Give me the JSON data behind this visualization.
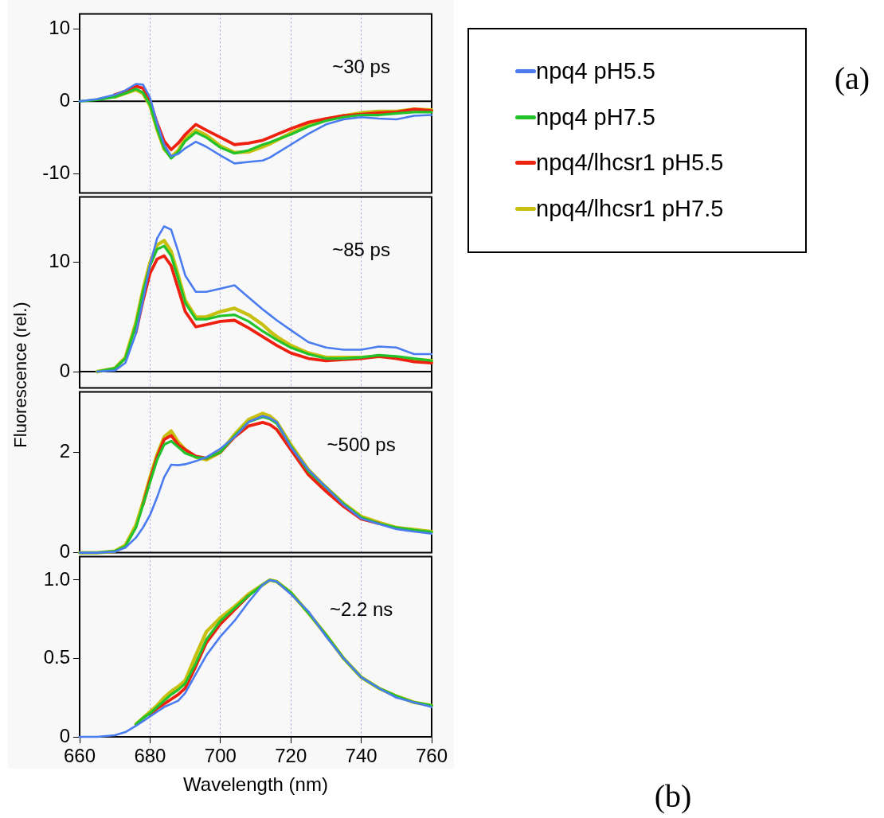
{
  "chart_data": [
    {
      "type": "line",
      "x": [
        660,
        665,
        670,
        673,
        676,
        678,
        680,
        682,
        684,
        686,
        688,
        690,
        693,
        696,
        700,
        704,
        708,
        712,
        714,
        716,
        720,
        725,
        730,
        735,
        740,
        745,
        750,
        755,
        760
      ],
      "series": [
        {
          "name": "npq4 pH5.5",
          "color": "#4a7cf0",
          "values": [
            0,
            0.3,
            0.9,
            1.5,
            2.4,
            2.3,
            0.5,
            -3.0,
            -6.0,
            -7.6,
            -7.3,
            -6.5,
            -5.6,
            -6.3,
            -7.5,
            -8.6,
            -8.4,
            -8.2,
            -7.8,
            -7.2,
            -6.0,
            -4.5,
            -3.2,
            -2.5,
            -2.2,
            -2.4,
            -2.5,
            -2.0,
            -1.9
          ]
        },
        {
          "name": "npq4 pH7.5",
          "color": "#22c32a",
          "values": [
            0,
            0.2,
            0.6,
            1.1,
            1.7,
            1.2,
            -0.5,
            -3.8,
            -6.5,
            -7.9,
            -7.0,
            -5.5,
            -4.3,
            -5.0,
            -6.4,
            -7.2,
            -6.8,
            -6.0,
            -5.7,
            -5.3,
            -4.6,
            -3.5,
            -2.7,
            -2.2,
            -1.9,
            -1.9,
            -1.7,
            -1.5,
            -1.5
          ]
        },
        {
          "name": "npq4/lhcsr1 pH5.5",
          "color": "#ee2010",
          "values": [
            null,
            null,
            0.9,
            1.4,
            2.1,
            1.8,
            0.0,
            -3.0,
            -5.5,
            -6.7,
            -5.8,
            -4.6,
            -3.2,
            -4.0,
            -5.0,
            -6.0,
            -5.8,
            -5.4,
            -5.0,
            -4.6,
            -3.8,
            -2.9,
            -2.4,
            -2.0,
            -1.8,
            -1.6,
            -1.5,
            -1.1,
            -1.3
          ]
        },
        {
          "name": "npq4/lhcsr1 pH7.5",
          "color": "#c8c010",
          "values": [
            null,
            null,
            0.6,
            1.1,
            1.6,
            1.1,
            -0.6,
            -3.9,
            -6.6,
            -7.7,
            -6.8,
            -5.2,
            -4.0,
            -4.7,
            -6.2,
            -7.1,
            -7.0,
            -6.3,
            -5.9,
            -5.4,
            -4.4,
            -3.3,
            -2.5,
            -2.0,
            -1.6,
            -1.4,
            -1.4,
            -1.1,
            -1.2
          ]
        }
      ],
      "xlim": [
        660,
        760
      ],
      "xticks": [
        660,
        680,
        700,
        720,
        740,
        760
      ],
      "ylim": [
        -12.7,
        12.1
      ],
      "yticks": [
        -10,
        0,
        10
      ],
      "grid": "x",
      "tick_labels": "y",
      "legend": "right",
      "ref_lines": [
        {
          "axis": "y",
          "value": 0,
          "color": "#000000"
        }
      ],
      "annotations": [
        "~30 ps",
        "(a)"
      ]
    },
    {
      "type": "line",
      "x": [
        665,
        670,
        673,
        676,
        678,
        680,
        682,
        684,
        686,
        688,
        690,
        693,
        696,
        700,
        704,
        708,
        712,
        714,
        716,
        720,
        725,
        730,
        735,
        740,
        745,
        750,
        755,
        760
      ],
      "series": [
        {
          "color": "#4a7cf0",
          "values": [
            0,
            0.1,
            0.8,
            3.5,
            6.5,
            9.8,
            12.2,
            13.3,
            13.0,
            11.0,
            8.8,
            7.3,
            7.3,
            7.6,
            7.9,
            6.8,
            5.7,
            5.2,
            4.7,
            3.8,
            2.7,
            2.2,
            2.0,
            2.0,
            2.3,
            2.2,
            1.6,
            1.6
          ]
        },
        {
          "color": "#22c32a",
          "values": [
            0,
            0.3,
            1.2,
            4.3,
            7.3,
            9.7,
            11.2,
            11.5,
            10.6,
            8.5,
            6.3,
            4.8,
            4.8,
            5.1,
            5.2,
            4.6,
            3.7,
            3.3,
            2.9,
            2.2,
            1.6,
            1.2,
            1.2,
            1.3,
            1.5,
            1.4,
            1.2,
            1.0
          ]
        },
        {
          "color": "#ee2010",
          "values": [
            null,
            null,
            null,
            3.6,
            6.5,
            9.0,
            10.3,
            10.6,
            9.7,
            7.6,
            5.5,
            4.1,
            4.3,
            4.6,
            4.7,
            4.0,
            3.2,
            2.8,
            2.4,
            1.7,
            1.2,
            1.0,
            1.1,
            1.2,
            1.4,
            1.2,
            0.9,
            0.8
          ]
        },
        {
          "color": "#c8c010",
          "values": [
            0,
            0.3,
            1.3,
            4.5,
            7.5,
            10.0,
            11.6,
            12.0,
            11.0,
            8.8,
            6.5,
            5.0,
            5.0,
            5.5,
            5.8,
            5.2,
            4.3,
            3.7,
            3.2,
            2.4,
            1.7,
            1.3,
            1.3,
            1.3,
            1.4,
            1.3,
            1.1,
            1.0
          ]
        }
      ],
      "xlim": [
        660,
        760
      ],
      "xticks": [
        660,
        680,
        700,
        720,
        740,
        760
      ],
      "ylim": [
        -1.5,
        16
      ],
      "yticks": [
        0,
        10
      ],
      "grid": "x",
      "tick_labels": "y",
      "ylabel": "Fluorescence (rel.)",
      "ref_lines": [
        {
          "axis": "y",
          "value": 0,
          "color": "#000000"
        }
      ],
      "annotations": [
        "~85 ps"
      ]
    },
    {
      "type": "line",
      "x": [
        660,
        665,
        670,
        673,
        676,
        678,
        680,
        682,
        684,
        686,
        688,
        690,
        693,
        696,
        700,
        704,
        708,
        712,
        714,
        716,
        720,
        725,
        730,
        735,
        740,
        745,
        750,
        755,
        760
      ],
      "series": [
        {
          "color": "#4a7cf0",
          "values": [
            0,
            0,
            0.02,
            0.1,
            0.3,
            0.5,
            0.75,
            1.1,
            1.5,
            1.75,
            1.74,
            1.76,
            1.82,
            1.9,
            2.07,
            2.3,
            2.6,
            2.72,
            2.68,
            2.6,
            2.1,
            1.65,
            1.3,
            0.95,
            0.68,
            0.57,
            0.47,
            0.42,
            0.38
          ]
        },
        {
          "color": "#22c32a",
          "values": [
            0,
            0,
            0.03,
            0.13,
            0.5,
            0.95,
            1.4,
            1.85,
            2.15,
            2.22,
            2.1,
            1.98,
            1.9,
            1.88,
            2.0,
            2.32,
            2.6,
            2.7,
            2.66,
            2.57,
            2.12,
            1.62,
            1.3,
            0.97,
            0.7,
            0.58,
            0.5,
            0.45,
            0.41
          ]
        },
        {
          "color": "#ee2010",
          "values": [
            null,
            null,
            null,
            null,
            null,
            0.95,
            1.45,
            1.9,
            2.25,
            2.33,
            2.15,
            2.05,
            1.92,
            1.88,
            2.0,
            2.3,
            2.52,
            2.59,
            2.55,
            2.45,
            2.05,
            1.55,
            1.22,
            0.92,
            0.67,
            0.58,
            null,
            null,
            null
          ]
        },
        {
          "color": "#c8c010",
          "values": [
            0,
            0,
            0.03,
            0.15,
            0.55,
            1.0,
            1.5,
            1.95,
            2.3,
            2.42,
            2.2,
            2.05,
            1.9,
            1.85,
            2.0,
            2.35,
            2.65,
            2.77,
            2.72,
            2.6,
            2.15,
            1.65,
            1.3,
            0.98,
            0.72,
            0.6,
            0.5,
            0.46,
            0.42
          ]
        }
      ],
      "xlim": [
        660,
        760
      ],
      "xticks": [
        660,
        680,
        700,
        720,
        740,
        760
      ],
      "ylim": [
        0,
        3.2
      ],
      "yticks": [
        0,
        2
      ],
      "grid": "x",
      "tick_labels": "y",
      "annotations": [
        "~500 ps"
      ]
    },
    {
      "type": "line",
      "x": [
        660,
        665,
        670,
        673,
        676,
        678,
        680,
        682,
        684,
        686,
        688,
        690,
        693,
        696,
        700,
        704,
        708,
        712,
        714,
        716,
        720,
        725,
        730,
        735,
        740,
        745,
        750,
        755,
        760
      ],
      "series": [
        {
          "color": "#4a7cf0",
          "values": [
            0,
            0,
            0.01,
            0.03,
            0.07,
            0.1,
            0.13,
            0.16,
            0.19,
            0.21,
            0.23,
            0.28,
            0.4,
            0.52,
            0.64,
            0.74,
            0.86,
            0.97,
            1.0,
            0.99,
            0.91,
            0.8,
            0.64,
            0.5,
            0.38,
            0.31,
            0.25,
            0.22,
            0.19
          ]
        },
        {
          "color": "#22c32a",
          "values": [
            null,
            null,
            null,
            null,
            0.08,
            0.12,
            0.15,
            0.19,
            0.23,
            0.27,
            0.3,
            0.34,
            0.47,
            0.62,
            0.74,
            0.82,
            0.9,
            0.97,
            1.0,
            0.99,
            0.92,
            0.79,
            0.65,
            0.5,
            0.38,
            0.31,
            0.26,
            0.22,
            0.2
          ]
        },
        {
          "color": "#ee2010",
          "values": [
            null,
            null,
            null,
            null,
            null,
            null,
            0.14,
            0.18,
            0.21,
            0.24,
            0.27,
            0.31,
            0.45,
            0.6,
            0.72,
            0.81,
            0.9,
            null,
            null,
            null,
            null,
            null,
            null,
            null,
            null,
            null,
            null,
            null,
            null
          ]
        },
        {
          "color": "#c8c010",
          "values": [
            null,
            null,
            null,
            null,
            0.08,
            0.12,
            0.16,
            0.2,
            0.25,
            0.29,
            0.32,
            0.36,
            0.52,
            0.67,
            0.76,
            0.83,
            0.91,
            0.97,
            1.0,
            0.99,
            0.92,
            0.79,
            0.65,
            0.5,
            0.38,
            0.31,
            0.26,
            0.22,
            0.2
          ]
        }
      ],
      "xlim": [
        660,
        760
      ],
      "xticks": [
        660,
        680,
        700,
        720,
        740,
        760
      ],
      "ylim": [
        0,
        1.15
      ],
      "yticks": [
        0,
        0.5,
        {
          "value": 1,
          "label": "1.0"
        }
      ],
      "grid": "x",
      "xlabel": "Wavelength (nm)",
      "annotations": [
        "~2.2 ns",
        "(b)"
      ]
    }
  ]
}
